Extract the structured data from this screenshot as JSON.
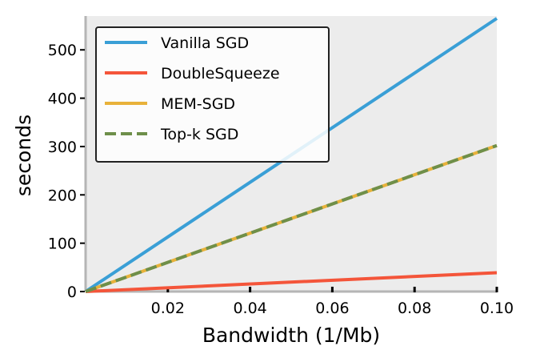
{
  "chart_data": {
    "type": "line",
    "title": "",
    "xlabel": "Bandwidth (1/Mb)",
    "ylabel": "seconds",
    "xlim": [
      0,
      0.1
    ],
    "ylim": [
      0,
      570
    ],
    "xticks": [
      0.02,
      0.04,
      0.06,
      0.08,
      0.1
    ],
    "xtick_labels": [
      "0.02",
      "0.04",
      "0.06",
      "0.08",
      "0.10"
    ],
    "yticks": [
      0,
      100,
      200,
      300,
      400,
      500
    ],
    "ytick_labels": [
      "0",
      "100",
      "200",
      "300",
      "400",
      "500"
    ],
    "grid": false,
    "background": "#ececec",
    "legend_position": "top-left",
    "series": [
      {
        "name": "Vanilla SGD",
        "color": "#3a9fd6",
        "style": "solid",
        "x": [
          0,
          0.1
        ],
        "y": [
          0,
          565
        ]
      },
      {
        "name": "DoubleSqueeze",
        "color": "#f4553a",
        "style": "solid",
        "x": [
          0,
          0.1
        ],
        "y": [
          0,
          39
        ]
      },
      {
        "name": "MEM-SGD",
        "color": "#e8b23a",
        "style": "solid",
        "x": [
          0,
          0.1
        ],
        "y": [
          0,
          302
        ]
      },
      {
        "name": "Top-k SGD",
        "color": "#6e8f4a",
        "style": "dashed",
        "x": [
          0,
          0.1
        ],
        "y": [
          0,
          302
        ]
      }
    ]
  }
}
